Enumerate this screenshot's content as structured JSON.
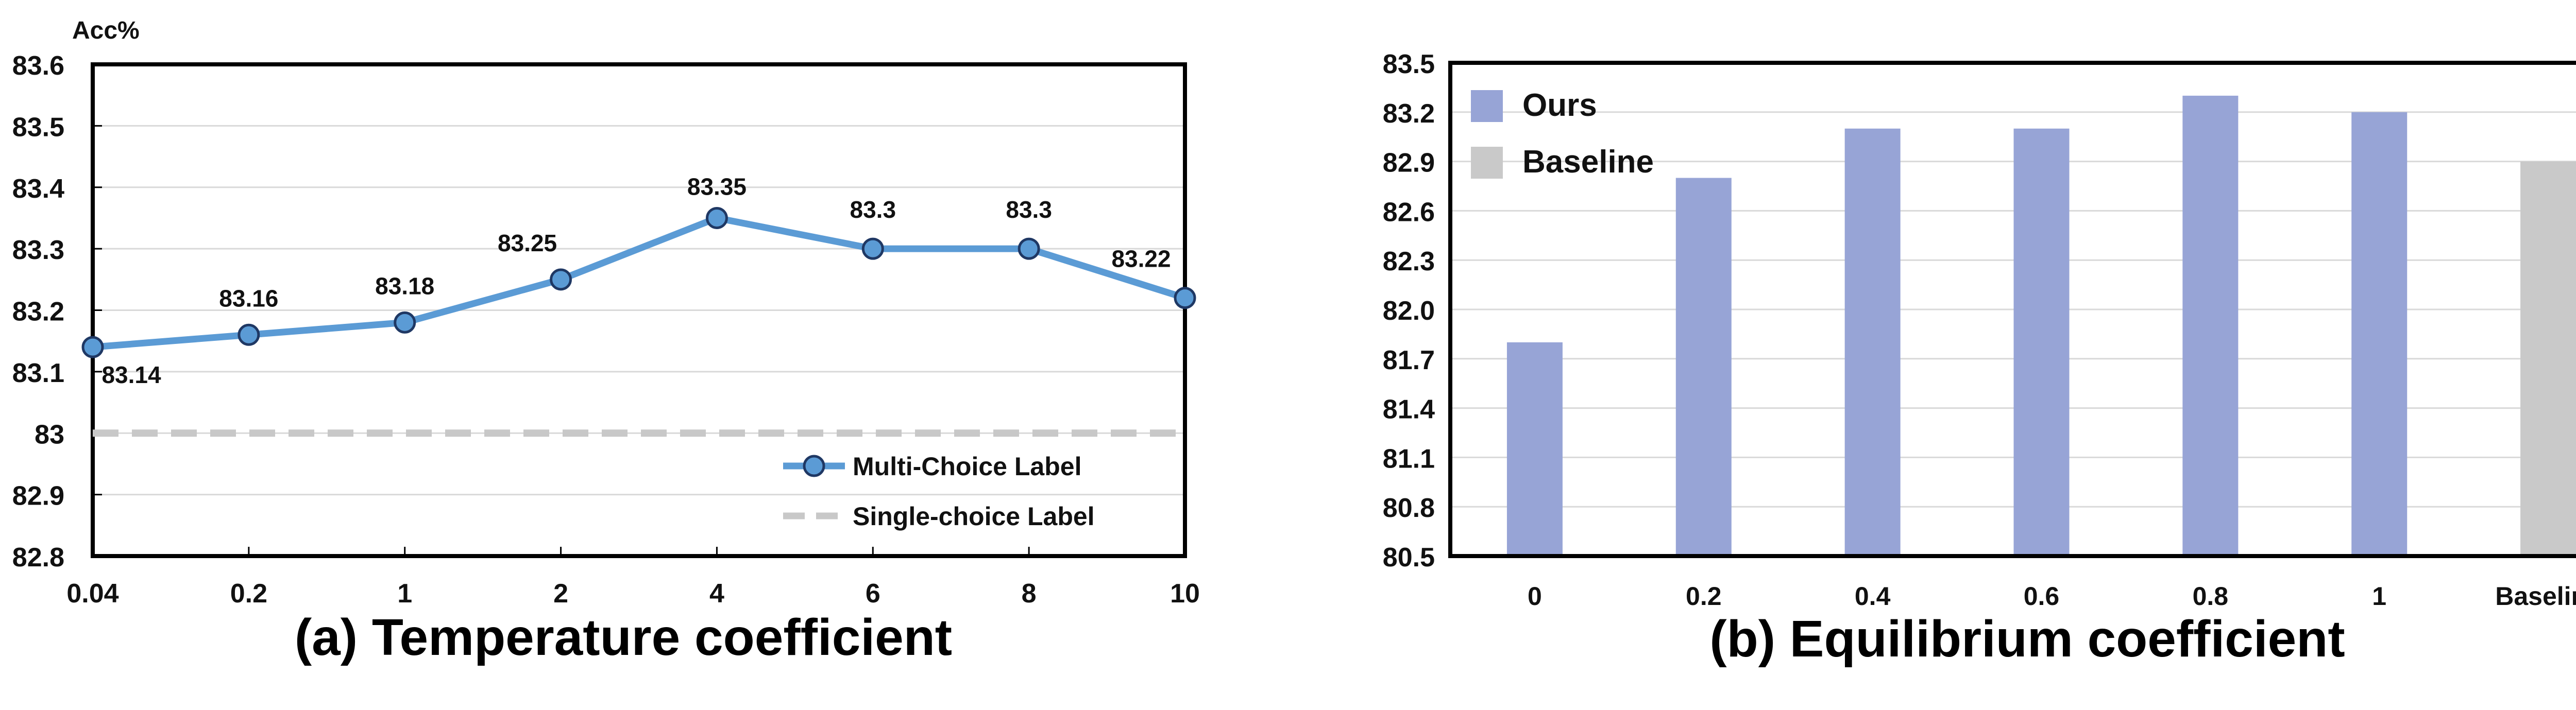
{
  "chart_data": [
    {
      "type": "line",
      "ylabel": "Acc%",
      "caption": "(a) Temperature coefficient",
      "categories": [
        "0.04",
        "0.2",
        "1",
        "2",
        "4",
        "6",
        "8",
        "10"
      ],
      "ylim": [
        82.8,
        83.6
      ],
      "yticks": [
        "82.8",
        "82.9",
        "83",
        "83.1",
        "83.2",
        "83.3",
        "83.4",
        "83.5",
        "83.6"
      ],
      "grid": true,
      "legend_position": "bottom-right",
      "series": [
        {
          "name": "Multi-Choice Label",
          "values": [
            83.14,
            83.16,
            83.18,
            83.25,
            83.35,
            83.3,
            83.3,
            83.22
          ],
          "data_labels": [
            "83.14",
            "83.16",
            "83.18",
            "83.25",
            "83.35",
            "83.3",
            "83.3",
            "83.22"
          ],
          "color": "#5B9BD5",
          "style": "solid-with-markers"
        },
        {
          "name": "Single-choice Label",
          "value": 83.0,
          "color": "#C8C8C8",
          "style": "dashed"
        }
      ]
    },
    {
      "type": "bar",
      "caption": "(b) Equilibrium coefficient",
      "categories": [
        "0",
        "0.2",
        "0.4",
        "0.6",
        "0.8",
        "1",
        "Baseline"
      ],
      "ylim": [
        80.5,
        83.5
      ],
      "yticks": [
        "80.5",
        "80.8",
        "81.1",
        "81.4",
        "81.7",
        "82.0",
        "82.3",
        "82.6",
        "82.9",
        "83.2",
        "83.5"
      ],
      "grid": true,
      "legend_position": "top-left",
      "series": [
        {
          "name": "Ours",
          "values": [
            81.8,
            82.8,
            83.1,
            83.1,
            83.3,
            83.2,
            null
          ],
          "color": "#97A4D6"
        },
        {
          "name": "Baseline",
          "values": [
            null,
            null,
            null,
            null,
            null,
            null,
            82.9
          ],
          "color": "#C9C9C9"
        }
      ]
    }
  ]
}
